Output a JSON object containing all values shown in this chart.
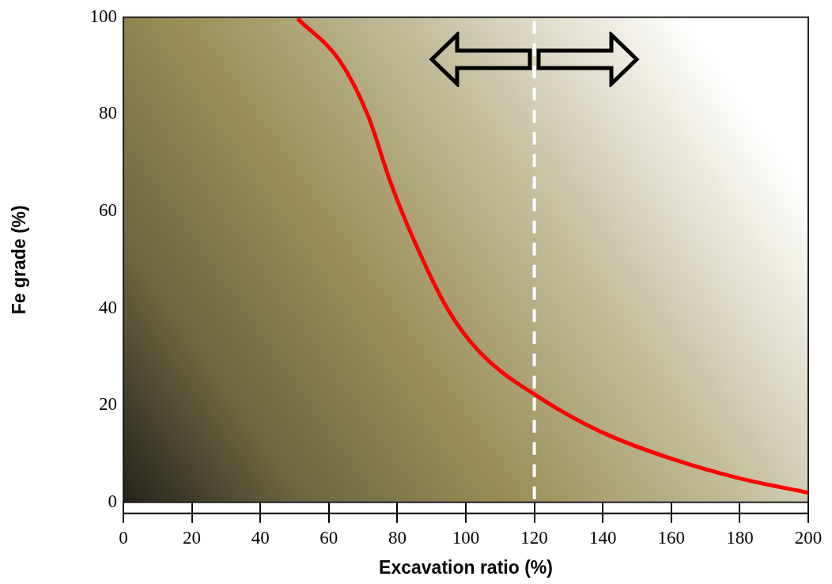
{
  "chart_data": {
    "type": "line",
    "xlabel": "Excavation ratio (%)",
    "ylabel": "Fe grade (%)",
    "series": [
      {
        "color": "#ff0000",
        "x": [
          51.2,
          63.2,
          71.5,
          78,
          84.5,
          94.7,
          104,
          121.5,
          139.6,
          160.4,
          179.6,
          199.8
        ],
        "values": [
          99.5,
          91,
          79.6,
          66,
          54.6,
          39.8,
          31,
          21.6,
          14.5,
          8.9,
          5.0,
          2.0
        ]
      }
    ],
    "xlim": [
      0,
      200
    ],
    "xticks": [
      0,
      20,
      40,
      60,
      80,
      100,
      120,
      140,
      160,
      180,
      200
    ],
    "ylim": [
      0,
      100
    ],
    "yticks": [
      0,
      20,
      40,
      60,
      80,
      100
    ],
    "ref_lines": [
      {
        "axis": "x",
        "value": 120,
        "color": "#ffffff",
        "line_style": "dashed"
      }
    ],
    "grid": false,
    "legend": false,
    "marker": "none",
    "line_style": "solid"
  }
}
